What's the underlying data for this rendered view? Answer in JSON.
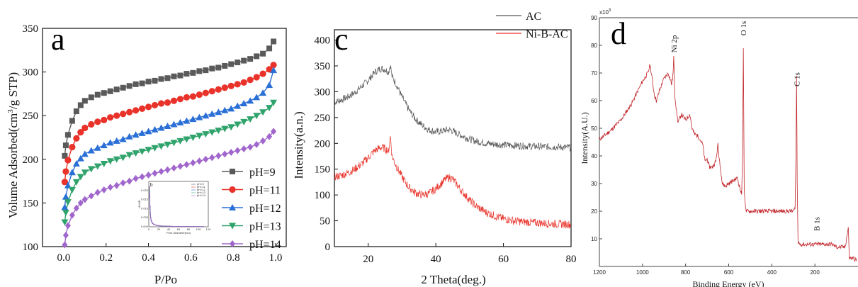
{
  "chart_data": [
    {
      "type": "scatter",
      "panel_label": "a",
      "xlabel": "P/Po",
      "ylabel": "Volume Adsorbed(cm³/g STP)",
      "ylabel_main": "Volume Adsorbed(cm",
      "ylabel_sup": "3",
      "ylabel_end": "/g STP)",
      "xlim": [
        -0.1,
        1.05
      ],
      "ylim": [
        100,
        350
      ],
      "xticks": [
        0.0,
        0.2,
        0.4,
        0.6,
        0.8,
        1.0
      ],
      "xtick_labels": [
        "0.0",
        "0.2",
        "0.4",
        "0.6",
        "0.8",
        "1.0"
      ],
      "yticks": [
        100,
        150,
        200,
        250,
        300,
        350
      ],
      "ytick_labels": [
        "100",
        "150",
        "200",
        "250",
        "300",
        "350"
      ],
      "legend_position": "right",
      "x": [
        0.005,
        0.01,
        0.02,
        0.04,
        0.06,
        0.08,
        0.1,
        0.13,
        0.16,
        0.19,
        0.22,
        0.25,
        0.28,
        0.31,
        0.34,
        0.37,
        0.4,
        0.43,
        0.46,
        0.49,
        0.52,
        0.55,
        0.58,
        0.61,
        0.64,
        0.67,
        0.7,
        0.73,
        0.76,
        0.79,
        0.82,
        0.85,
        0.88,
        0.91,
        0.94,
        0.97,
        0.99
      ],
      "series": [
        {
          "name": "pH=9",
          "color": "#5a5a5a",
          "marker": "square",
          "values": [
            204,
            216,
            228,
            244,
            255,
            262,
            267,
            271,
            274,
            276,
            278,
            280,
            282,
            284,
            286,
            287,
            289,
            290,
            292,
            293,
            295,
            296,
            298,
            299,
            301,
            302,
            304,
            305,
            307,
            309,
            311,
            313,
            315,
            318,
            321,
            327,
            335
          ]
        },
        {
          "name": "pH=11",
          "color": "#e8322a",
          "marker": "circle",
          "values": [
            174,
            186,
            199,
            214,
            224,
            231,
            236,
            240,
            243,
            245,
            248,
            250,
            252,
            254,
            256,
            258,
            260,
            262,
            264,
            265,
            267,
            269,
            271,
            272,
            274,
            276,
            278,
            280,
            282,
            284,
            286,
            288,
            291,
            294,
            298,
            303,
            308
          ]
        },
        {
          "name": "pH=12",
          "color": "#2a6fd6",
          "marker": "triangle-up",
          "values": [
            145,
            157,
            170,
            185,
            195,
            201,
            206,
            210,
            213,
            216,
            219,
            221,
            223,
            226,
            228,
            230,
            232,
            234,
            236,
            238,
            240,
            242,
            244,
            246,
            248,
            250,
            252,
            254,
            256,
            258,
            261,
            264,
            267,
            271,
            276,
            285,
            302
          ]
        },
        {
          "name": "pH=13",
          "color": "#2fa36b",
          "marker": "triangle-down",
          "values": [
            128,
            139,
            151,
            165,
            174,
            180,
            185,
            189,
            192,
            195,
            198,
            200,
            202,
            205,
            207,
            209,
            211,
            213,
            215,
            217,
            219,
            221,
            223,
            225,
            227,
            229,
            231,
            233,
            235,
            237,
            240,
            243,
            246,
            250,
            254,
            259,
            265
          ]
        },
        {
          "name": "pH=14",
          "color": "#a066cc",
          "marker": "diamond",
          "values": [
            102,
            113,
            124,
            136,
            144,
            150,
            154,
            158,
            162,
            165,
            168,
            170,
            173,
            175,
            178,
            180,
            182,
            184,
            186,
            188,
            190,
            192,
            194,
            196,
            198,
            200,
            202,
            204,
            206,
            208,
            210,
            212,
            214,
            217,
            221,
            226,
            232
          ]
        }
      ],
      "inset": {
        "panel_label": "b",
        "xlabel": "Pore Diameter(nm)",
        "ylabel": "dV/dD",
        "xlim": [
          0,
          120
        ],
        "ylim": [
          0,
          0.025
        ],
        "xtick_labels": [
          "0",
          "20",
          "40",
          "60",
          "80",
          "100",
          "120"
        ],
        "ytick_labels": [
          "0.000",
          "0.005",
          "0.010",
          "0.015",
          "0.020"
        ],
        "legend": [
          "pH=9",
          "pH=11",
          "pH=12",
          "pH=13",
          "pH=14"
        ],
        "x": [
          1.5,
          2,
          2.5,
          3,
          4,
          5,
          7,
          10,
          15,
          20,
          30,
          40,
          60,
          80,
          100,
          110
        ],
        "values": [
          0.022,
          0.016,
          0.011,
          0.008,
          0.005,
          0.0035,
          0.0022,
          0.0014,
          0.0009,
          0.0006,
          0.0004,
          0.0003,
          0.0002,
          0.00015,
          0.0001,
          0.0001
        ]
      }
    },
    {
      "type": "line",
      "panel_label": "c",
      "xlabel": "2 Theta(deg.)",
      "ylabel": "Intensity(a.n.)",
      "xlim": [
        10,
        80
      ],
      "ylim": [
        0,
        420
      ],
      "xticks": [
        20,
        40,
        60,
        80
      ],
      "xtick_labels": [
        "20",
        "40",
        "60",
        "80"
      ],
      "yticks": [
        0,
        50,
        100,
        150,
        200,
        250,
        300,
        350,
        400
      ],
      "ytick_labels": [
        "0",
        "50",
        "100",
        "150",
        "200",
        "250",
        "300",
        "350",
        "400"
      ],
      "legend_position": "top-right",
      "x": [
        10,
        12,
        14,
        16,
        18,
        20,
        21,
        22,
        23,
        24,
        25,
        26,
        26.6,
        27,
        28,
        30,
        32,
        34,
        36,
        38,
        40,
        42,
        43,
        44,
        45,
        46,
        48,
        50,
        52,
        55,
        58,
        60,
        63,
        66,
        70,
        75,
        80
      ],
      "series": [
        {
          "name": "AC",
          "color": "#555555",
          "values": [
            280,
            284,
            290,
            298,
            310,
            322,
            330,
            338,
            343,
            345,
            343,
            338,
            352,
            330,
            318,
            290,
            265,
            247,
            235,
            226,
            222,
            224,
            226,
            226,
            224,
            220,
            214,
            208,
            204,
            200,
            198,
            197,
            196,
            195,
            194,
            193,
            192
          ]
        },
        {
          "name": "Ni-B-AC",
          "color": "#e8322a",
          "values": [
            135,
            138,
            143,
            150,
            160,
            172,
            180,
            186,
            190,
            192,
            190,
            184,
            215,
            176,
            160,
            135,
            115,
            104,
            100,
            103,
            112,
            125,
            131,
            134,
            131,
            122,
            105,
            90,
            78,
            66,
            58,
            54,
            50,
            48,
            46,
            44,
            43
          ]
        }
      ]
    },
    {
      "type": "line",
      "panel_label": "d",
      "xlabel": "Binding Energy (eV)",
      "ylabel": "Intensity(A.U.)",
      "yscale_label": "x10",
      "yscale_exp": "3",
      "xlim": [
        1200,
        0
      ],
      "ylim": [
        0,
        90
      ],
      "xticks": [
        1200,
        1000,
        800,
        600,
        400,
        200
      ],
      "xtick_labels": [
        "1200",
        "1000",
        "800",
        "600",
        "400",
        "200"
      ],
      "yticks": [
        10,
        20,
        30,
        40,
        50,
        60,
        70,
        80,
        90
      ],
      "ytick_labels": [
        "10",
        "20",
        "30",
        "40",
        "50",
        "60",
        "70",
        "80",
        "90"
      ],
      "peak_labels": [
        "Ni 2p",
        "O 1s",
        "C 1s",
        "B 1s"
      ],
      "peak_positions": [
        855,
        532,
        285,
        192
      ],
      "series": [
        {
          "name": "",
          "color": "#c0262b",
          "x": [
            1200,
            1150,
            1100,
            1050,
            1000,
            975,
            965,
            955,
            945,
            935,
            920,
            900,
            880,
            865,
            858,
            855,
            850,
            842,
            835,
            820,
            800,
            780,
            770,
            760,
            740,
            720,
            710,
            700,
            690,
            675,
            660,
            650,
            645,
            640,
            630,
            615,
            600,
            580,
            560,
            540,
            536,
            532,
            528,
            520,
            500,
            450,
            400,
            350,
            300,
            292,
            288,
            285,
            282,
            278,
            270,
            250,
            220,
            192,
            170,
            150,
            120,
            100,
            80,
            60,
            45,
            40,
            30,
            20,
            5
          ],
          "values": [
            46,
            49,
            53,
            59,
            67,
            70,
            73,
            68,
            62,
            60,
            64,
            68,
            70,
            66,
            70,
            76,
            62,
            56,
            52,
            55,
            53,
            55,
            50,
            48,
            47,
            44,
            38,
            39,
            36,
            36,
            38,
            44,
            40,
            37,
            30,
            29,
            30,
            31,
            32,
            26,
            40,
            79,
            28,
            20,
            20,
            20,
            20,
            20,
            20,
            21,
            40,
            69,
            30,
            9,
            8,
            8,
            8,
            8,
            8,
            8,
            8,
            7,
            7,
            7,
            14,
            3,
            3,
            3,
            2
          ]
        }
      ]
    }
  ]
}
